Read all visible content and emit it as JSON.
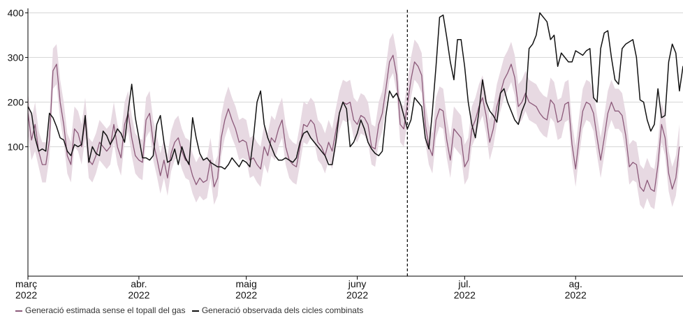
{
  "chart_data": {
    "type": "line",
    "title": "",
    "xlabel": "",
    "ylabel": "",
    "ylim": [
      -190,
      410
    ],
    "y_ticks": [
      100,
      200,
      300,
      400
    ],
    "x_ticks": [
      {
        "date": "2022-03-01",
        "month": "març",
        "year": "2022"
      },
      {
        "date": "2022-04-01",
        "month": "abr.",
        "year": "2022"
      },
      {
        "date": "2022-05-01",
        "month": "maig",
        "year": "2022"
      },
      {
        "date": "2022-06-01",
        "month": "juny",
        "year": "2022"
      },
      {
        "date": "2022-07-01",
        "month": "jul.",
        "year": "2022"
      },
      {
        "date": "2022-08-01",
        "month": "ag.",
        "year": "2022"
      }
    ],
    "x_range": [
      "2022-03-01",
      "2022-08-31"
    ],
    "vline_date": "2022-06-15",
    "grid": true,
    "legend_position": "bottom-left",
    "legend": [
      {
        "label": "Generació estimada sense el topall del gas",
        "color": "#8c5a7a"
      },
      {
        "label": "Generació observada dels cicles combinats",
        "color": "#111111"
      }
    ],
    "colors": {
      "estimated": "#8c5a7a",
      "band": "#e7d9e2",
      "observed": "#111111",
      "grid": "#d4d4d4"
    },
    "series": [
      {
        "name": "Generació estimada sense el topall del gas",
        "start_date": "2022-03-01",
        "values": [
          175,
          115,
          150,
          90,
          60,
          60,
          115,
          270,
          285,
          200,
          150,
          80,
          60,
          140,
          130,
          100,
          160,
          70,
          60,
          80,
          110,
          100,
          90,
          100,
          150,
          100,
          75,
          150,
          175,
          120,
          80,
          70,
          65,
          160,
          175,
          110,
          75,
          35,
          70,
          30,
          85,
          110,
          120,
          90,
          70,
          65,
          35,
          15,
          30,
          20,
          25,
          70,
          10,
          30,
          120,
          160,
          185,
          160,
          140,
          110,
          115,
          110,
          70,
          75,
          60,
          50,
          100,
          80,
          120,
          110,
          140,
          160,
          100,
          70,
          60,
          55,
          100,
          150,
          145,
          160,
          150,
          110,
          100,
          80,
          110,
          90,
          135,
          175,
          200,
          195,
          200,
          160,
          150,
          170,
          165,
          150,
          100,
          95,
          150,
          175,
          230,
          290,
          305,
          260,
          150,
          140,
          195,
          250,
          290,
          280,
          260,
          150,
          100,
          80,
          160,
          185,
          180,
          115,
          70,
          140,
          130,
          120,
          55,
          70,
          140,
          160,
          190,
          210,
          170,
          110,
          140,
          190,
          220,
          250,
          265,
          285,
          255,
          190,
          200,
          220,
          200,
          195,
          190,
          175,
          165,
          160,
          205,
          195,
          155,
          160,
          195,
          200,
          105,
          50,
          120,
          180,
          200,
          195,
          175,
          120,
          70,
          120,
          175,
          200,
          180,
          180,
          170,
          125,
          55,
          65,
          60,
          10,
          0,
          25,
          5,
          0,
          60,
          150,
          120,
          40,
          5,
          30,
          100
        ]
      },
      {
        "name": "Generació observada dels cicles combinats",
        "start_date": "2022-03-01",
        "values": [
          190,
          175,
          120,
          90,
          95,
          90,
          175,
          165,
          145,
          120,
          115,
          90,
          80,
          105,
          100,
          105,
          170,
          65,
          100,
          85,
          80,
          135,
          125,
          105,
          120,
          140,
          130,
          110,
          180,
          240,
          165,
          120,
          75,
          75,
          70,
          80,
          150,
          170,
          110,
          65,
          70,
          95,
          60,
          100,
          75,
          60,
          165,
          120,
          85,
          70,
          75,
          65,
          60,
          55,
          55,
          50,
          60,
          75,
          65,
          55,
          70,
          65,
          55,
          120,
          200,
          225,
          150,
          120,
          100,
          80,
          70,
          70,
          75,
          70,
          65,
          75,
          110,
          130,
          135,
          120,
          110,
          100,
          90,
          80,
          60,
          60,
          110,
          175,
          200,
          185,
          100,
          110,
          130,
          160,
          140,
          110,
          95,
          85,
          80,
          90,
          170,
          225,
          210,
          220,
          200,
          170,
          140,
          160,
          210,
          200,
          190,
          120,
          95,
          180,
          280,
          390,
          395,
          345,
          290,
          250,
          340,
          340,
          280,
          200,
          150,
          120,
          180,
          250,
          200,
          180,
          170,
          155,
          220,
          230,
          200,
          180,
          160,
          150,
          180,
          200,
          320,
          330,
          350,
          400,
          390,
          380,
          340,
          350,
          280,
          310,
          300,
          290,
          290,
          315,
          310,
          305,
          315,
          320,
          210,
          200,
          320,
          355,
          360,
          300,
          250,
          240,
          320,
          330,
          335,
          340,
          300,
          205,
          200,
          160,
          135,
          150,
          230,
          165,
          170,
          290,
          330,
          310,
          225,
          280,
          240,
          335
        ]
      }
    ],
    "band": {
      "name": "Generació estimada sense el topall del gas",
      "start_date": "2022-03-01",
      "lower": [
        130,
        70,
        90,
        55,
        20,
        20,
        75,
        230,
        240,
        160,
        110,
        40,
        20,
        100,
        90,
        60,
        120,
        30,
        20,
        40,
        70,
        60,
        50,
        60,
        110,
        60,
        35,
        110,
        135,
        80,
        40,
        30,
        25,
        120,
        135,
        70,
        35,
        -5,
        30,
        -10,
        45,
        70,
        80,
        50,
        30,
        25,
        -5,
        -25,
        -10,
        -20,
        -15,
        30,
        -30,
        -10,
        80,
        120,
        145,
        120,
        100,
        70,
        75,
        70,
        30,
        35,
        20,
        10,
        60,
        40,
        80,
        70,
        100,
        120,
        60,
        30,
        20,
        15,
        60,
        110,
        105,
        120,
        110,
        70,
        60,
        40,
        70,
        50,
        95,
        135,
        160,
        155,
        160,
        120,
        110,
        130,
        125,
        110,
        60,
        55,
        110,
        135,
        190,
        250,
        265,
        220,
        110,
        100,
        155,
        210,
        250,
        240,
        220,
        110,
        60,
        40,
        120,
        145,
        140,
        75,
        30,
        100,
        90,
        80,
        15,
        30,
        100,
        120,
        150,
        170,
        130,
        70,
        100,
        150,
        180,
        210,
        225,
        245,
        215,
        150,
        160,
        180,
        160,
        155,
        150,
        135,
        125,
        120,
        165,
        155,
        115,
        120,
        155,
        160,
        65,
        10,
        80,
        140,
        160,
        155,
        135,
        80,
        30,
        80,
        135,
        160,
        140,
        140,
        130,
        85,
        15,
        25,
        20,
        -30,
        -40,
        -15,
        -35,
        -40,
        20,
        110,
        80,
        0,
        -35,
        -10,
        60
      ],
      "upper": [
        220,
        160,
        200,
        135,
        110,
        110,
        165,
        320,
        330,
        250,
        200,
        130,
        110,
        190,
        180,
        150,
        210,
        120,
        110,
        130,
        160,
        150,
        140,
        150,
        200,
        150,
        125,
        200,
        225,
        170,
        130,
        120,
        115,
        210,
        225,
        160,
        125,
        85,
        120,
        80,
        135,
        160,
        170,
        140,
        120,
        115,
        85,
        65,
        80,
        70,
        75,
        120,
        60,
        80,
        170,
        210,
        235,
        210,
        190,
        160,
        165,
        160,
        120,
        125,
        110,
        100,
        150,
        130,
        170,
        160,
        190,
        210,
        150,
        120,
        110,
        105,
        150,
        200,
        195,
        210,
        200,
        160,
        150,
        130,
        160,
        140,
        185,
        225,
        250,
        245,
        250,
        210,
        200,
        220,
        215,
        200,
        150,
        145,
        200,
        225,
        280,
        340,
        355,
        310,
        200,
        190,
        245,
        300,
        340,
        330,
        310,
        200,
        150,
        130,
        210,
        235,
        230,
        165,
        120,
        190,
        180,
        170,
        105,
        120,
        190,
        210,
        240,
        260,
        220,
        160,
        190,
        240,
        270,
        300,
        315,
        335,
        305,
        240,
        250,
        270,
        250,
        245,
        240,
        225,
        215,
        210,
        255,
        245,
        205,
        210,
        245,
        250,
        155,
        100,
        170,
        230,
        250,
        245,
        225,
        170,
        120,
        170,
        225,
        250,
        230,
        230,
        220,
        175,
        105,
        115,
        110,
        60,
        50,
        75,
        55,
        50,
        110,
        200,
        170,
        90,
        55,
        80,
        150
      ]
    }
  }
}
